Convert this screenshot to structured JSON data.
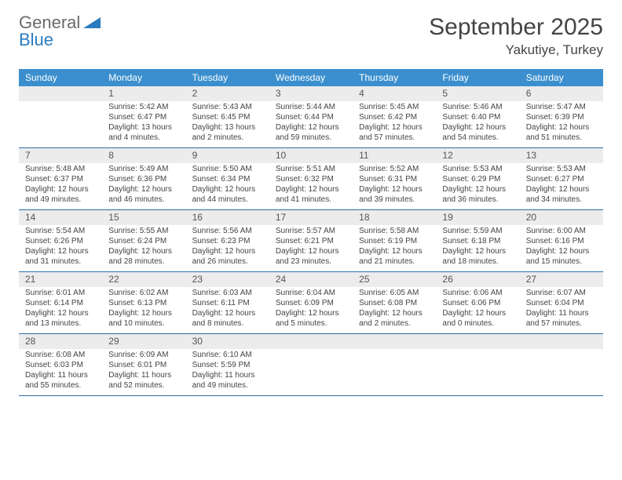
{
  "logo": {
    "line1a": "General",
    "triangleColor": "#2a7bbf",
    "line2": "Blue"
  },
  "title": "September 2025",
  "location": "Yakutiye, Turkey",
  "colors": {
    "headerBar": "#3b8fce",
    "weekDivider": "#2a6fa8",
    "dayNumBg": "#ececec",
    "bodyText": "#444444",
    "logoGrey": "#6a6a6a",
    "logoBlue": "#2a7bbf"
  },
  "dow": [
    "Sunday",
    "Monday",
    "Tuesday",
    "Wednesday",
    "Thursday",
    "Friday",
    "Saturday"
  ],
  "weeks": [
    [
      {
        "num": "",
        "lines": []
      },
      {
        "num": "1",
        "lines": [
          "Sunrise: 5:42 AM",
          "Sunset: 6:47 PM",
          "Daylight: 13 hours and 4 minutes."
        ]
      },
      {
        "num": "2",
        "lines": [
          "Sunrise: 5:43 AM",
          "Sunset: 6:45 PM",
          "Daylight: 13 hours and 2 minutes."
        ]
      },
      {
        "num": "3",
        "lines": [
          "Sunrise: 5:44 AM",
          "Sunset: 6:44 PM",
          "Daylight: 12 hours and 59 minutes."
        ]
      },
      {
        "num": "4",
        "lines": [
          "Sunrise: 5:45 AM",
          "Sunset: 6:42 PM",
          "Daylight: 12 hours and 57 minutes."
        ]
      },
      {
        "num": "5",
        "lines": [
          "Sunrise: 5:46 AM",
          "Sunset: 6:40 PM",
          "Daylight: 12 hours and 54 minutes."
        ]
      },
      {
        "num": "6",
        "lines": [
          "Sunrise: 5:47 AM",
          "Sunset: 6:39 PM",
          "Daylight: 12 hours and 51 minutes."
        ]
      }
    ],
    [
      {
        "num": "7",
        "lines": [
          "Sunrise: 5:48 AM",
          "Sunset: 6:37 PM",
          "Daylight: 12 hours and 49 minutes."
        ]
      },
      {
        "num": "8",
        "lines": [
          "Sunrise: 5:49 AM",
          "Sunset: 6:36 PM",
          "Daylight: 12 hours and 46 minutes."
        ]
      },
      {
        "num": "9",
        "lines": [
          "Sunrise: 5:50 AM",
          "Sunset: 6:34 PM",
          "Daylight: 12 hours and 44 minutes."
        ]
      },
      {
        "num": "10",
        "lines": [
          "Sunrise: 5:51 AM",
          "Sunset: 6:32 PM",
          "Daylight: 12 hours and 41 minutes."
        ]
      },
      {
        "num": "11",
        "lines": [
          "Sunrise: 5:52 AM",
          "Sunset: 6:31 PM",
          "Daylight: 12 hours and 39 minutes."
        ]
      },
      {
        "num": "12",
        "lines": [
          "Sunrise: 5:53 AM",
          "Sunset: 6:29 PM",
          "Daylight: 12 hours and 36 minutes."
        ]
      },
      {
        "num": "13",
        "lines": [
          "Sunrise: 5:53 AM",
          "Sunset: 6:27 PM",
          "Daylight: 12 hours and 34 minutes."
        ]
      }
    ],
    [
      {
        "num": "14",
        "lines": [
          "Sunrise: 5:54 AM",
          "Sunset: 6:26 PM",
          "Daylight: 12 hours and 31 minutes."
        ]
      },
      {
        "num": "15",
        "lines": [
          "Sunrise: 5:55 AM",
          "Sunset: 6:24 PM",
          "Daylight: 12 hours and 28 minutes."
        ]
      },
      {
        "num": "16",
        "lines": [
          "Sunrise: 5:56 AM",
          "Sunset: 6:23 PM",
          "Daylight: 12 hours and 26 minutes."
        ]
      },
      {
        "num": "17",
        "lines": [
          "Sunrise: 5:57 AM",
          "Sunset: 6:21 PM",
          "Daylight: 12 hours and 23 minutes."
        ]
      },
      {
        "num": "18",
        "lines": [
          "Sunrise: 5:58 AM",
          "Sunset: 6:19 PM",
          "Daylight: 12 hours and 21 minutes."
        ]
      },
      {
        "num": "19",
        "lines": [
          "Sunrise: 5:59 AM",
          "Sunset: 6:18 PM",
          "Daylight: 12 hours and 18 minutes."
        ]
      },
      {
        "num": "20",
        "lines": [
          "Sunrise: 6:00 AM",
          "Sunset: 6:16 PM",
          "Daylight: 12 hours and 15 minutes."
        ]
      }
    ],
    [
      {
        "num": "21",
        "lines": [
          "Sunrise: 6:01 AM",
          "Sunset: 6:14 PM",
          "Daylight: 12 hours and 13 minutes."
        ]
      },
      {
        "num": "22",
        "lines": [
          "Sunrise: 6:02 AM",
          "Sunset: 6:13 PM",
          "Daylight: 12 hours and 10 minutes."
        ]
      },
      {
        "num": "23",
        "lines": [
          "Sunrise: 6:03 AM",
          "Sunset: 6:11 PM",
          "Daylight: 12 hours and 8 minutes."
        ]
      },
      {
        "num": "24",
        "lines": [
          "Sunrise: 6:04 AM",
          "Sunset: 6:09 PM",
          "Daylight: 12 hours and 5 minutes."
        ]
      },
      {
        "num": "25",
        "lines": [
          "Sunrise: 6:05 AM",
          "Sunset: 6:08 PM",
          "Daylight: 12 hours and 2 minutes."
        ]
      },
      {
        "num": "26",
        "lines": [
          "Sunrise: 6:06 AM",
          "Sunset: 6:06 PM",
          "Daylight: 12 hours and 0 minutes."
        ]
      },
      {
        "num": "27",
        "lines": [
          "Sunrise: 6:07 AM",
          "Sunset: 6:04 PM",
          "Daylight: 11 hours and 57 minutes."
        ]
      }
    ],
    [
      {
        "num": "28",
        "lines": [
          "Sunrise: 6:08 AM",
          "Sunset: 6:03 PM",
          "Daylight: 11 hours and 55 minutes."
        ]
      },
      {
        "num": "29",
        "lines": [
          "Sunrise: 6:09 AM",
          "Sunset: 6:01 PM",
          "Daylight: 11 hours and 52 minutes."
        ]
      },
      {
        "num": "30",
        "lines": [
          "Sunrise: 6:10 AM",
          "Sunset: 5:59 PM",
          "Daylight: 11 hours and 49 minutes."
        ]
      },
      {
        "num": "",
        "lines": []
      },
      {
        "num": "",
        "lines": []
      },
      {
        "num": "",
        "lines": []
      },
      {
        "num": "",
        "lines": []
      }
    ]
  ]
}
